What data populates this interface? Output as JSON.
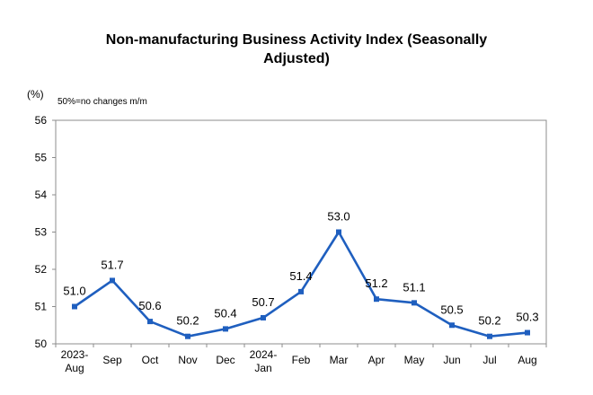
{
  "chart_data": {
    "type": "line",
    "title_line1": "Non-manufacturing Business Activity Index (Seasonally",
    "title_line2": "Adjusted)",
    "ylabel": "(%)",
    "note": "50%=no changes m/m",
    "ylim": [
      50,
      56
    ],
    "yticks": [
      50,
      51,
      52,
      53,
      54,
      55,
      56
    ],
    "grid": false,
    "legend": "none",
    "categories": [
      [
        "2023-",
        "Aug"
      ],
      [
        "Sep"
      ],
      [
        "Oct"
      ],
      [
        "Nov"
      ],
      [
        "Dec"
      ],
      [
        "2024-",
        "Jan"
      ],
      [
        "Feb"
      ],
      [
        "Mar"
      ],
      [
        "Apr"
      ],
      [
        "May"
      ],
      [
        "Jun"
      ],
      [
        "Jul"
      ],
      [
        "Aug"
      ]
    ],
    "values": [
      51.0,
      51.7,
      50.6,
      50.2,
      50.4,
      50.7,
      51.4,
      53.0,
      51.2,
      51.1,
      50.5,
      50.2,
      50.3
    ],
    "data_labels": [
      "51.0",
      "51.7",
      "50.6",
      "50.2",
      "50.4",
      "50.7",
      "51.4",
      "53.0",
      "51.2",
      "51.1",
      "50.5",
      "50.2",
      "50.3"
    ],
    "line_color": "#1f5fbf"
  }
}
